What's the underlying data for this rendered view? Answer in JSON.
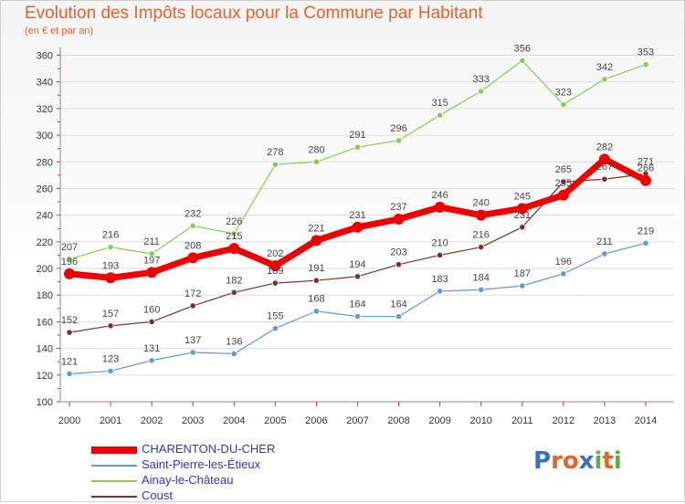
{
  "header": {
    "title": "Evolution des Impôts locaux pour la Commune par Habitant",
    "subtitle": "(en € et par an)"
  },
  "logo": {
    "text": "Proxiti"
  },
  "chart_data": {
    "type": "line",
    "x": [
      2000,
      2001,
      2002,
      2003,
      2004,
      2005,
      2006,
      2007,
      2008,
      2009,
      2010,
      2011,
      2012,
      2013,
      2014
    ],
    "ylim": [
      100,
      360
    ],
    "yticks": [
      100,
      120,
      140,
      160,
      180,
      200,
      220,
      240,
      260,
      280,
      300,
      320,
      340,
      360
    ],
    "grid": "horizontal",
    "legend": "bottom-left",
    "series": [
      {
        "name": "CHARENTON-DU-CHER",
        "color": "#ee0000",
        "width": 7,
        "values": [
          196,
          193,
          197,
          208,
          215,
          202,
          221,
          231,
          237,
          246,
          240,
          245,
          255,
          282,
          266
        ]
      },
      {
        "name": "Saint-Pierre-les-Étieux",
        "color": "#6699cc",
        "width": 1.2,
        "values": [
          121,
          123,
          131,
          137,
          136,
          155,
          168,
          164,
          164,
          183,
          184,
          187,
          196,
          211,
          219
        ]
      },
      {
        "name": "Ainay-le-Château",
        "color": "#88cc55",
        "width": 1.2,
        "values": [
          207,
          216,
          211,
          232,
          226,
          278,
          280,
          291,
          296,
          315,
          333,
          356,
          323,
          342,
          353
        ]
      },
      {
        "name": "Coust",
        "color": "#773333",
        "width": 1.2,
        "values": [
          152,
          157,
          160,
          172,
          182,
          189,
          191,
          194,
          203,
          210,
          216,
          231,
          265,
          267,
          271
        ]
      }
    ]
  }
}
